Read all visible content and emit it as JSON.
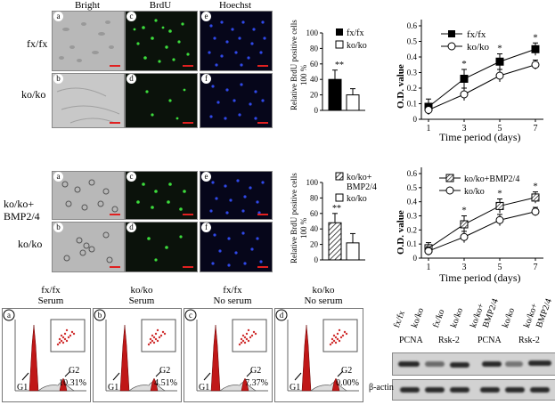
{
  "micro_headers": {
    "bright": "Bright",
    "brdu": "BrdU",
    "hoechst": "Hoechst"
  },
  "row_labels": {
    "top1": "fx/fx",
    "top2": "ko/ko",
    "bot1_line1": "ko/ko+",
    "bot1_line2": "BMP2/4",
    "bot2": "ko/ko"
  },
  "panel_letters": {
    "a": "a",
    "b": "b",
    "c": "c",
    "d": "d",
    "e": "e",
    "f": "f"
  },
  "colors": {
    "scale_bar": "#e02020",
    "brdu": "#3cdc3c",
    "hoechst": "#3048e8",
    "histogram": "#c01818"
  },
  "bar_chart_top": {
    "ylabel_line1": "Relative BrdU positive cells",
    "ylabel_line2": "100 %",
    "legend": [
      "fx/fx",
      "ko/ko"
    ],
    "significance": "**"
  },
  "bar_chart_bottom": {
    "ylabel_line1": "Relative BrdU positive cells",
    "ylabel_line2": "100 %",
    "legend_line1": "ko/ko+",
    "legend_line2": "BMP2/4",
    "legend2": "ko/ko",
    "significance": "**"
  },
  "line_chart_top": {
    "ylabel": "O.D. value",
    "xlabel": "Time period (days)",
    "legend": [
      "fx/fx",
      "ko/ko"
    ],
    "star": "*"
  },
  "line_chart_bottom": {
    "ylabel": "O.D. value",
    "xlabel": "Time period (days)",
    "legend": [
      "ko/ko+BMP2/4",
      "ko/ko"
    ],
    "star": "*"
  },
  "chart_data": [
    {
      "type": "bar",
      "categories": [
        "fx/fx",
        "ko/ko"
      ],
      "values": [
        40,
        20
      ],
      "errors": [
        12,
        8
      ],
      "ylabel": "Relative BrdU positive cells 100 %",
      "yticks": [
        0,
        20,
        40,
        60,
        80,
        100
      ],
      "ylim": [
        0,
        100
      ]
    },
    {
      "type": "bar",
      "categories": [
        "ko/ko+BMP2/4",
        "ko/ko"
      ],
      "values": [
        48,
        22
      ],
      "errors": [
        12,
        12
      ],
      "ylabel": "Relative BrdU positive cells 100 %",
      "yticks": [
        0,
        20,
        40,
        60,
        80,
        100
      ],
      "ylim": [
        0,
        100
      ]
    },
    {
      "type": "line",
      "x": [
        1,
        3,
        5,
        7
      ],
      "series": [
        {
          "name": "fx/fx",
          "values": [
            0.08,
            0.26,
            0.37,
            0.45
          ]
        },
        {
          "name": "ko/ko",
          "values": [
            0.06,
            0.16,
            0.28,
            0.35
          ]
        }
      ],
      "errors": [
        [
          0.05,
          0.06,
          0.05,
          0.04
        ],
        [
          0.03,
          0.04,
          0.04,
          0.03
        ]
      ],
      "xticks": [
        1,
        3,
        5,
        7
      ],
      "yticks": [
        "0",
        "0.1",
        "0.2",
        "0.3",
        "0.4",
        "0.5",
        "0.6"
      ],
      "ylim": [
        0,
        0.6
      ],
      "significant_days": [
        3,
        5,
        7
      ],
      "xlabel": "Time period (days)",
      "ylabel": "O.D. value"
    },
    {
      "type": "line",
      "x": [
        1,
        3,
        5,
        7
      ],
      "series": [
        {
          "name": "ko/ko+BMP2/4",
          "values": [
            0.07,
            0.24,
            0.37,
            0.43
          ]
        },
        {
          "name": "ko/ko",
          "values": [
            0.05,
            0.15,
            0.27,
            0.33
          ]
        }
      ],
      "errors": [
        [
          0.04,
          0.06,
          0.05,
          0.04
        ],
        [
          0.03,
          0.04,
          0.04,
          0.03
        ]
      ],
      "xticks": [
        1,
        3,
        5,
        7
      ],
      "yticks": [
        "0",
        "0.1",
        "0.2",
        "0.3",
        "0.4",
        "0.5",
        "0.6"
      ],
      "ylim": [
        0,
        0.6
      ],
      "significant_days": [
        3,
        5,
        7
      ],
      "xlabel": "Time period (days)",
      "ylabel": "O.D. value"
    }
  ],
  "flow_panels": [
    {
      "letter": "a",
      "title1": "fx/fx",
      "title2": "Serum",
      "g1": "G1",
      "g2": "G2",
      "pct": "10.31%"
    },
    {
      "letter": "b",
      "title1": "ko/ko",
      "title2": "Serum",
      "g1": "G1",
      "g2": "G2",
      "pct": "4.51%"
    },
    {
      "letter": "c",
      "title1": "fx/fx",
      "title2": "No serum",
      "g1": "G1",
      "g2": "G2",
      "pct": "7.37%"
    },
    {
      "letter": "d",
      "title1": "ko/ko",
      "title2": "No serum",
      "g1": "G1",
      "g2": "G2",
      "pct": "0.00%"
    }
  ],
  "western": {
    "lanes": [
      "fx/fx",
      "ko/ko",
      "fx/ko",
      "ko/ko",
      "ko/ko+",
      "BMP2/4",
      "ko/ko",
      "ko/ko+",
      "BMP2/4"
    ],
    "proteins": [
      "PCNA",
      "Rsk-2",
      "PCNA",
      "Rsk-2"
    ],
    "loading": "β-actin"
  }
}
